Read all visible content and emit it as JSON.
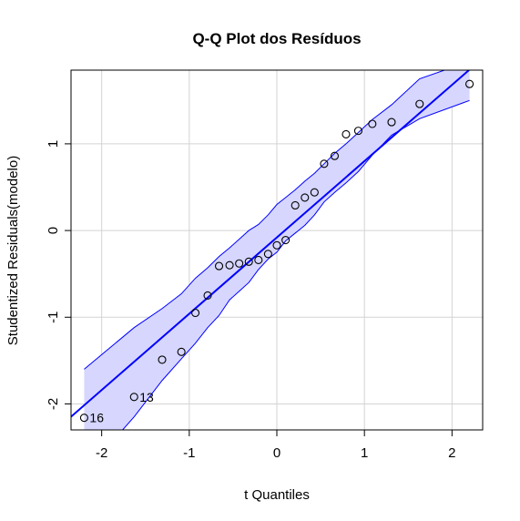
{
  "chart_data": {
    "type": "scatter",
    "title": "Q-Q Plot dos Resíduos",
    "xlabel": "t Quantiles",
    "ylabel": "Studentized Residuals(modelo)",
    "xlim": [
      -2.35,
      2.35
    ],
    "ylim": [
      -2.3,
      1.85
    ],
    "xticks": [
      -2,
      -1,
      0,
      1,
      2
    ],
    "yticks": [
      -2,
      -1,
      0,
      1
    ],
    "xtick_labels": [
      "-2",
      "-1",
      "0",
      "1",
      "2"
    ],
    "ytick_labels": [
      "-2",
      "-1",
      "0",
      "1"
    ],
    "grid": true,
    "points": {
      "x": [
        -2.2,
        -1.63,
        -1.31,
        -1.09,
        -0.93,
        -0.79,
        -0.66,
        -0.54,
        -0.43,
        -0.32,
        -0.21,
        -0.1,
        0.0,
        0.1,
        0.21,
        0.32,
        0.43,
        0.54,
        0.66,
        0.79,
        0.93,
        1.09,
        1.31,
        1.63,
        2.2
      ],
      "y": [
        -2.16,
        -1.92,
        -1.49,
        -1.4,
        -0.95,
        -0.75,
        -0.41,
        -0.4,
        -0.38,
        -0.36,
        -0.34,
        -0.27,
        -0.17,
        -0.11,
        0.29,
        0.38,
        0.44,
        0.77,
        0.86,
        1.11,
        1.15,
        1.23,
        1.25,
        1.46,
        1.69
      ]
    },
    "labeled_points": [
      {
        "index": 0,
        "text": "16"
      },
      {
        "index": 1,
        "text": "13"
      }
    ],
    "reference_line": {
      "intercept": -0.08,
      "slope": 0.88,
      "color": "#0000ff"
    },
    "envelope": {
      "color": "#0000ff",
      "fill": "#d6d6ff",
      "x": [
        -2.2,
        -1.63,
        -1.31,
        -1.09,
        -0.93,
        -0.79,
        -0.66,
        -0.54,
        -0.43,
        -0.32,
        -0.21,
        -0.1,
        0.0,
        0.1,
        0.21,
        0.32,
        0.43,
        0.54,
        0.66,
        0.79,
        0.93,
        1.09,
        1.31,
        1.63,
        2.2
      ],
      "upper": [
        -1.6,
        -1.12,
        -0.9,
        -0.73,
        -0.55,
        -0.43,
        -0.3,
        -0.2,
        -0.1,
        0.0,
        0.07,
        0.18,
        0.3,
        0.38,
        0.47,
        0.57,
        0.66,
        0.77,
        0.89,
        1.0,
        1.13,
        1.28,
        1.45,
        1.75,
        1.95
      ],
      "lower": [
        -2.8,
        -2.15,
        -1.73,
        -1.48,
        -1.3,
        -1.12,
        -0.98,
        -0.8,
        -0.7,
        -0.6,
        -0.45,
        -0.33,
        -0.25,
        -0.12,
        -0.03,
        0.06,
        0.18,
        0.33,
        0.44,
        0.55,
        0.68,
        0.87,
        1.1,
        1.29,
        1.5
      ]
    }
  }
}
